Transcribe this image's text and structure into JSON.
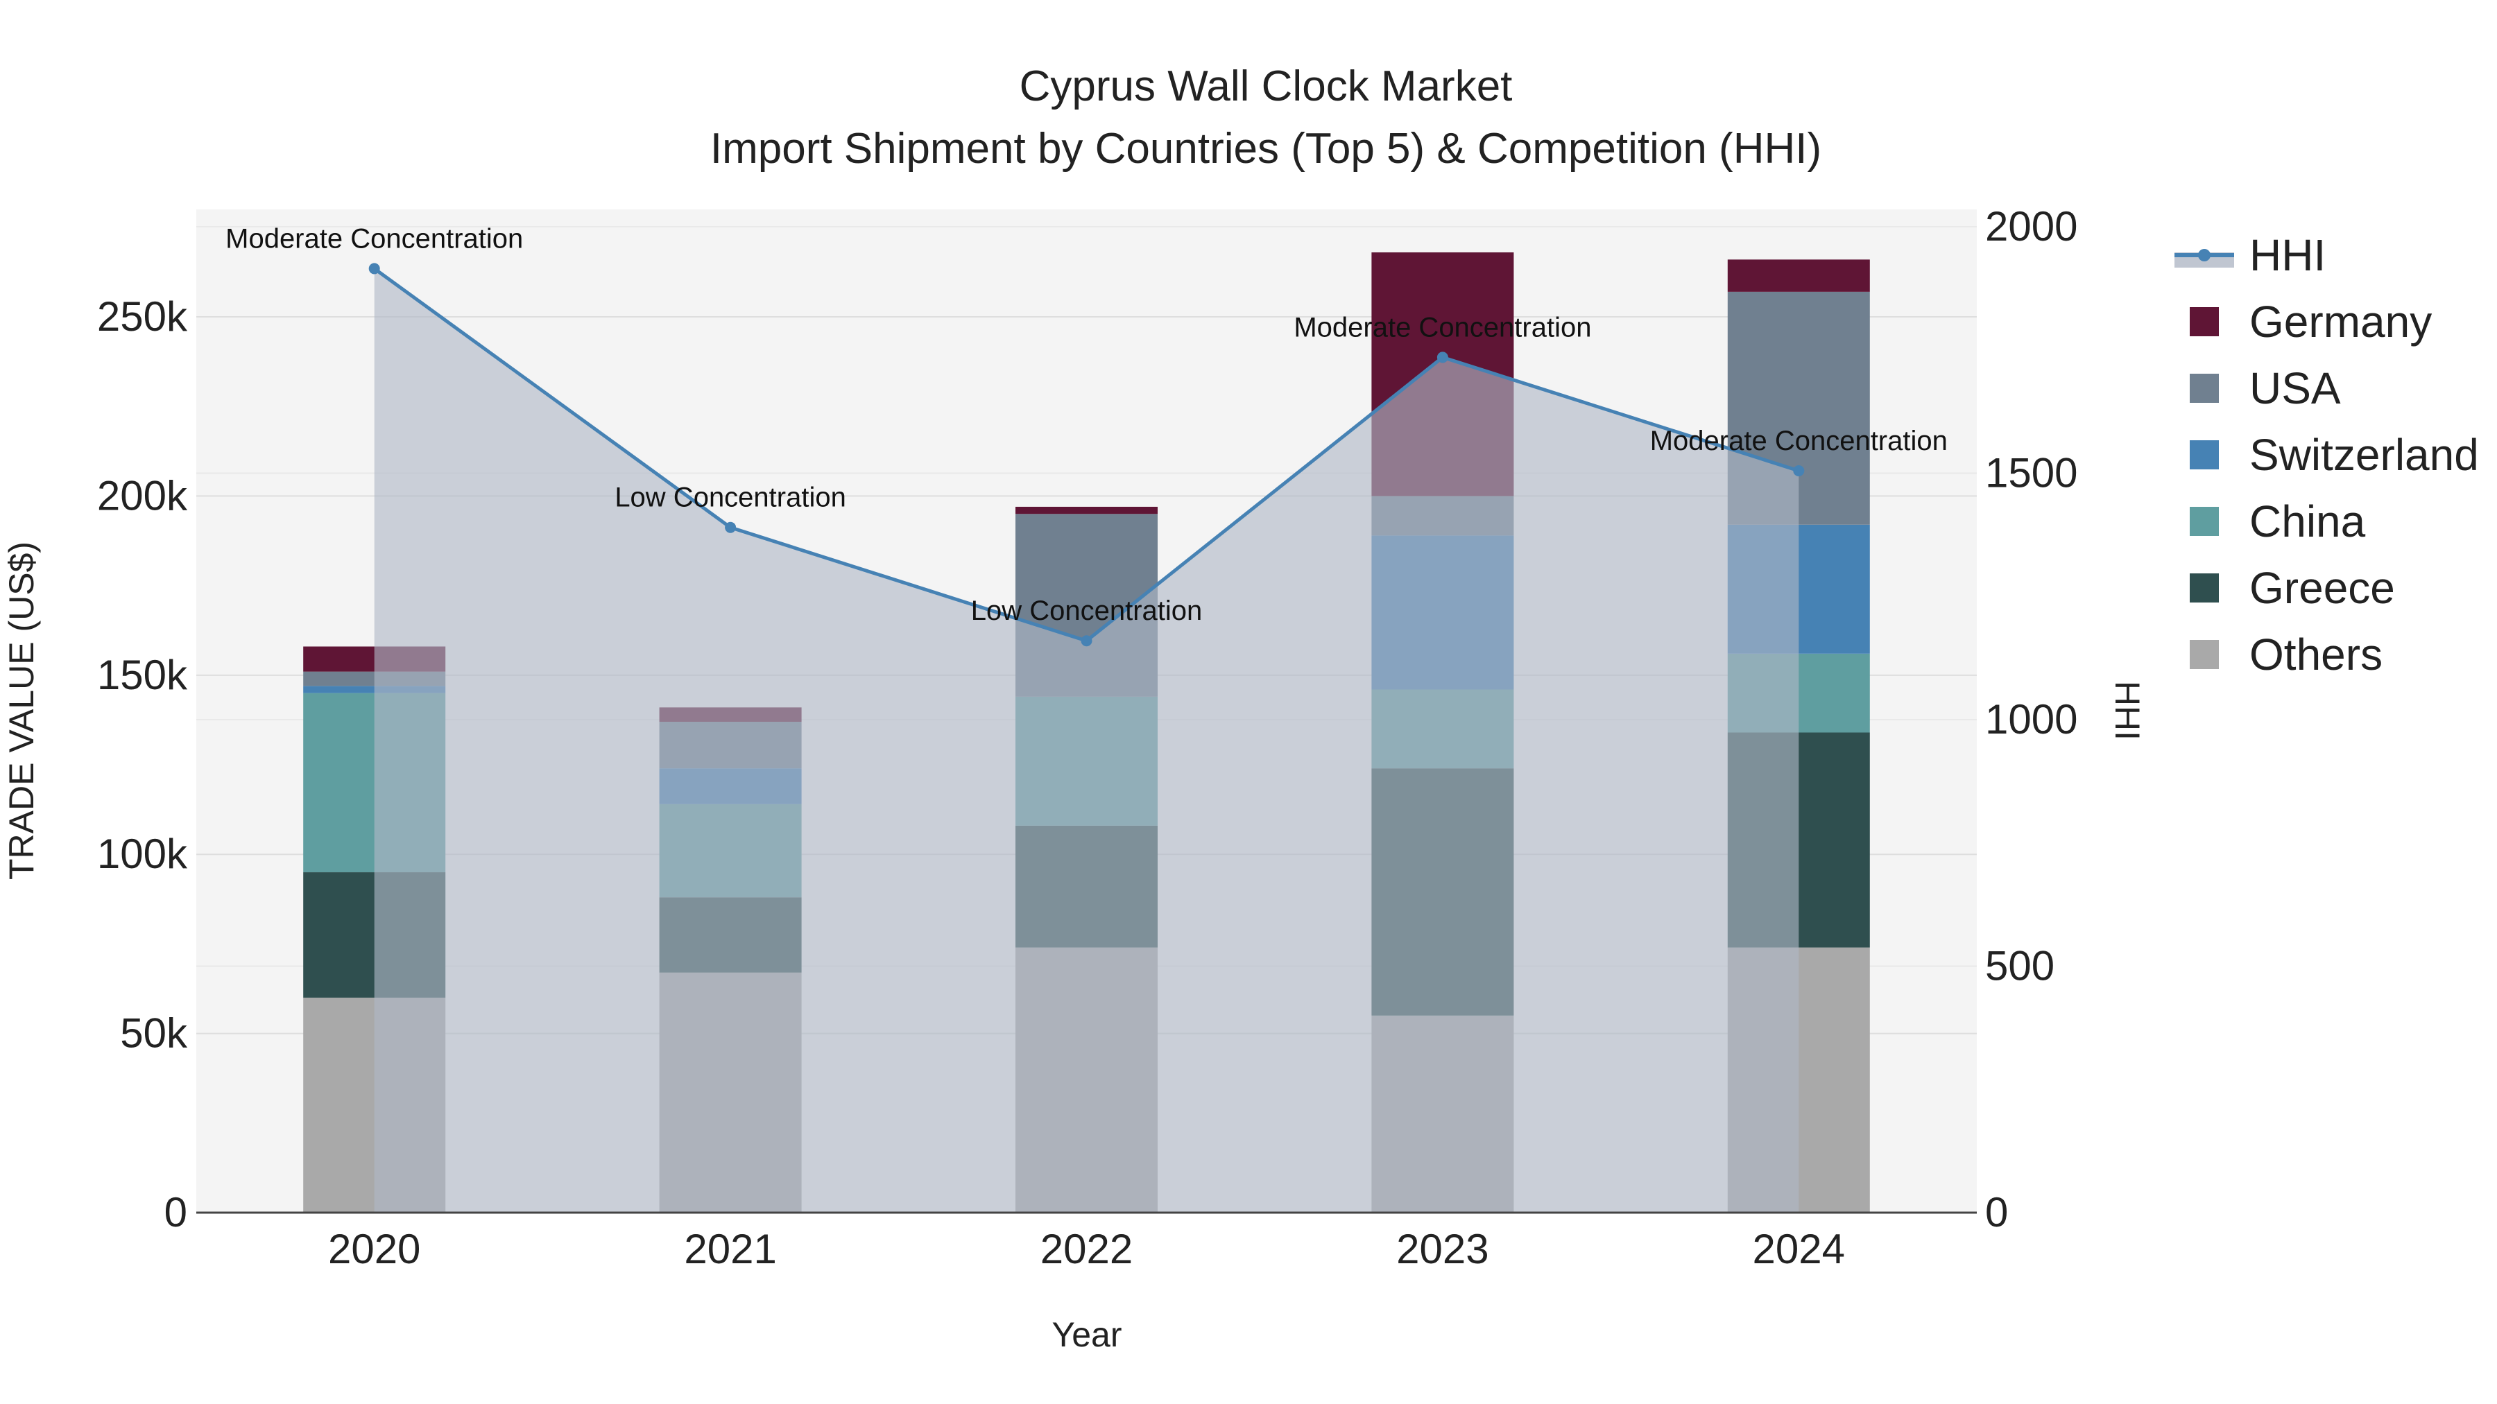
{
  "chart_data": {
    "type": "bar",
    "title": "Cyprus Wall Clock Market",
    "subtitle": "Import Shipment by Countries (Top 5) & Competition (HHI)",
    "xlabel": "Year",
    "ylabel": "TRADE VALUE (US$)",
    "y2label": "HHI",
    "categories": [
      "2020",
      "2021",
      "2022",
      "2023",
      "2024"
    ],
    "ylim": [
      0,
      280000
    ],
    "y2lim": [
      0,
      2000
    ],
    "y_ticks": [
      {
        "value": 0,
        "label": "0"
      },
      {
        "value": 50000,
        "label": "50k"
      },
      {
        "value": 100000,
        "label": "100k"
      },
      {
        "value": 150000,
        "label": "150k"
      },
      {
        "value": 200000,
        "label": "200k"
      },
      {
        "value": 250000,
        "label": "250k"
      }
    ],
    "y2_ticks": [
      {
        "value": 0,
        "label": "0"
      },
      {
        "value": 500,
        "label": "500"
      },
      {
        "value": 1000,
        "label": "1000"
      },
      {
        "value": 1500,
        "label": "1500"
      },
      {
        "value": 2000,
        "label": "2000"
      }
    ],
    "stack_order": [
      "Others",
      "Greece",
      "China",
      "Switzerland",
      "USA",
      "Germany"
    ],
    "series": [
      {
        "name": "Germany",
        "color": "#5f1535",
        "values": [
          7000,
          4000,
          2000,
          68000,
          9000
        ]
      },
      {
        "name": "USA",
        "color": "#708090",
        "values": [
          4000,
          13000,
          51000,
          11000,
          65000
        ]
      },
      {
        "name": "Switzerland",
        "color": "#4682b4",
        "values": [
          2000,
          10000,
          0,
          43000,
          36000
        ]
      },
      {
        "name": "China",
        "color": "#5f9ea0",
        "values": [
          50000,
          26000,
          36000,
          22000,
          22000
        ]
      },
      {
        "name": "Greece",
        "color": "#2f4f4f",
        "values": [
          35000,
          21000,
          34000,
          69000,
          60000
        ]
      },
      {
        "name": "Others",
        "color": "#a9a9a9",
        "values": [
          60000,
          67000,
          74000,
          55000,
          74000
        ]
      }
    ],
    "hhi": {
      "name": "HHI",
      "color": "#4682b4",
      "values": [
        1915,
        1390,
        1160,
        1735,
        1505
      ],
      "labels": [
        "Moderate Concentration",
        "Low Concentration",
        "Low Concentration",
        "Moderate Concentration",
        "Moderate Concentration"
      ]
    },
    "grid": true,
    "legend_position": "right"
  }
}
